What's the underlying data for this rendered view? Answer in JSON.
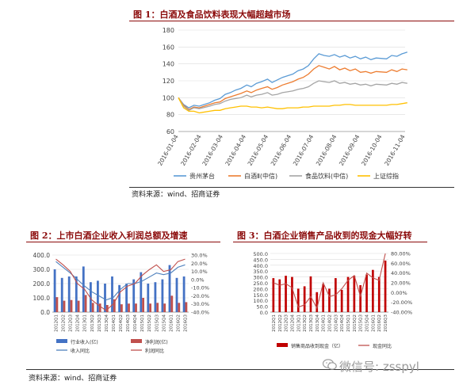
{
  "fig1": {
    "title": "图 1：白酒及食品饮料表现大幅超越市场",
    "source": "资料来源：wind、招商证券"
  },
  "fig2": {
    "title": "图 2：上市白酒企业收入利润总额及增速"
  },
  "fig3": {
    "title": "图 3：白酒企业销售产品收到的现金大幅好转"
  },
  "bottom_source": "资料来源：wind、招商证券",
  "watermark": "微信号: zsspyl",
  "chart_data": [
    {
      "type": "line",
      "x": [
        "2016-01-04",
        "2016-01-11",
        "2016-01-18",
        "2016-01-25",
        "2016-02-01",
        "2016-02-15",
        "2016-02-22",
        "2016-02-29",
        "2016-03-07",
        "2016-03-14",
        "2016-03-21",
        "2016-03-28",
        "2016-04-05",
        "2016-04-11",
        "2016-04-18",
        "2016-04-25",
        "2016-05-03",
        "2016-05-09",
        "2016-05-16",
        "2016-05-23",
        "2016-05-30",
        "2016-06-06",
        "2016-06-13",
        "2016-06-20",
        "2016-06-27",
        "2016-07-04",
        "2016-07-11",
        "2016-07-18",
        "2016-07-25",
        "2016-08-01",
        "2016-08-08",
        "2016-08-15",
        "2016-08-22",
        "2016-08-29",
        "2016-09-05",
        "2016-09-12",
        "2016-09-19",
        "2016-09-26",
        "2016-10-10",
        "2016-10-17",
        "2016-10-24",
        "2016-10-31",
        "2016-11-07"
      ],
      "xticks": [
        "2016-01-04",
        "2016-02-04",
        "2016-03-04",
        "2016-04-04",
        "2016-05-04",
        "2016-06-04",
        "2016-07-04",
        "2016-08-04",
        "2016-09-04",
        "2016-10-04",
        "2016-11-04"
      ],
      "series": [
        {
          "name": "贵州茅台",
          "color": "#5b9bd5",
          "values": [
            100,
            92,
            88,
            91,
            90,
            94,
            97,
            99,
            104,
            106,
            109,
            111,
            115,
            113,
            117,
            119,
            122,
            118,
            121,
            124,
            126,
            128,
            132,
            134,
            138,
            146,
            152,
            150,
            149,
            151,
            148,
            150,
            147,
            149,
            146,
            148,
            145,
            147,
            146,
            150,
            149,
            152,
            154
          ]
        },
        {
          "name": "白酒Ⅱ(中信)",
          "color": "#ed7d31",
          "values": [
            100,
            91,
            86,
            89,
            88,
            92,
            94,
            95,
            99,
            101,
            103,
            105,
            108,
            106,
            109,
            111,
            113,
            110,
            112,
            115,
            117,
            119,
            122,
            124,
            128,
            134,
            138,
            136,
            134,
            137,
            133,
            135,
            132,
            134,
            130,
            131,
            129,
            131,
            130,
            133,
            131,
            134,
            133
          ]
        },
        {
          "name": "食品饮料(中信)",
          "color": "#a5a5a5",
          "values": [
            100,
            90,
            85,
            88,
            87,
            90,
            92,
            93,
            96,
            98,
            99,
            100,
            103,
            101,
            103,
            104,
            106,
            103,
            104,
            106,
            107,
            108,
            110,
            111,
            113,
            117,
            120,
            119,
            118,
            120,
            117,
            118,
            116,
            117,
            115,
            116,
            114,
            116,
            115,
            117,
            116,
            118,
            117
          ]
        },
        {
          "name": "上证综指",
          "color": "#ffc000",
          "values": [
            100,
            88,
            84,
            84,
            82,
            84,
            85,
            85,
            87,
            88,
            89,
            90,
            90,
            89,
            89,
            88,
            89,
            88,
            87,
            87,
            88,
            88,
            88,
            89,
            89,
            90,
            90,
            90,
            90,
            91,
            91,
            92,
            92,
            91,
            91,
            91,
            91,
            91,
            91,
            92,
            92,
            93,
            94
          ]
        }
      ],
      "ylim": [
        60,
        180
      ],
      "yticks": [
        60,
        80,
        100,
        120,
        140,
        160,
        180
      ],
      "legend": "bottom"
    },
    {
      "type": "bar",
      "categories": [
        "2012Q1",
        "2012Q2",
        "2012Q3",
        "2012Q4",
        "2013Q1",
        "2013Q2",
        "2013Q3",
        "2013Q4",
        "2014Q1",
        "2014Q2",
        "2014Q3",
        "2014Q4",
        "2015Q1",
        "2015Q2",
        "2015Q3",
        "2015Q4",
        "2016Q1",
        "2016Q2",
        "2016Q3"
      ],
      "series": [
        {
          "name": "行业收入(亿)",
          "type": "bar",
          "axis": "left",
          "color": "#4472c4",
          "values": [
            300,
            240,
            250,
            250,
            320,
            210,
            220,
            200,
            250,
            190,
            200,
            230,
            280,
            200,
            210,
            230,
            330,
            240,
            250
          ]
        },
        {
          "name": "净利润(亿)",
          "type": "bar",
          "axis": "left",
          "color": "#c0504d",
          "values": [
            105,
            80,
            85,
            80,
            120,
            65,
            60,
            50,
            90,
            55,
            60,
            60,
            100,
            60,
            65,
            60,
            115,
            65,
            70
          ]
        },
        {
          "name": "收入同比",
          "type": "line",
          "axis": "right",
          "color": "#4f81bd",
          "values": [
            22,
            15,
            8,
            0,
            -8,
            -15,
            -20,
            -25,
            -22,
            -12,
            -5,
            -5,
            -2,
            3,
            8,
            6,
            8,
            15,
            18
          ]
        },
        {
          "name": "利润同比",
          "type": "line",
          "axis": "right",
          "color": "#c0504d",
          "values": [
            25,
            18,
            10,
            -5,
            -12,
            -25,
            -32,
            -38,
            -30,
            -15,
            -8,
            -5,
            5,
            12,
            18,
            10,
            12,
            22,
            25
          ]
        }
      ],
      "ylim_left": [
        0,
        400
      ],
      "yticks_left": [
        "0.0",
        "100.0",
        "200.0",
        "300.0",
        "400.0"
      ],
      "ylim_right": [
        -40,
        30
      ],
      "yticks_right": [
        "-40.0%",
        "-30.0%",
        "-20.0%",
        "-10.0%",
        "0.0%",
        "10.0%",
        "20.0%",
        "30.0%"
      ],
      "legend": "bottom"
    },
    {
      "type": "bar",
      "categories": [
        "2012Q1",
        "2012Q2",
        "2012Q3",
        "2012Q4",
        "2013Q1",
        "2013Q2",
        "2013Q3",
        "2013Q4",
        "2014Q1",
        "2014Q2",
        "2014Q3",
        "2014Q4",
        "2015Q1",
        "2015Q2",
        "2015Q3",
        "2015Q4",
        "2016Q1",
        "2016Q2",
        "2016Q3"
      ],
      "series": [
        {
          "name": "销售商品收到现金（亿）",
          "type": "bar",
          "axis": "left",
          "color": "#c00000",
          "values": [
            290,
            280,
            310,
            300,
            200,
            220,
            305,
            170,
            240,
            200,
            290,
            190,
            300,
            310,
            230,
            320,
            360,
            300,
            440
          ]
        },
        {
          "name": "现金同比",
          "type": "line",
          "axis": "right",
          "color": "#c0504d",
          "values": [
            20,
            15,
            18,
            10,
            -30,
            -25,
            -8,
            -32,
            20,
            -8,
            -5,
            8,
            25,
            35,
            -8,
            40,
            30,
            25,
            80
          ]
        }
      ],
      "ylim_left": [
        0,
        500
      ],
      "yticks_left": [
        "0.0",
        "50.0",
        "100.0",
        "150.0",
        "200.0",
        "250.0",
        "300.0",
        "350.0",
        "400.0",
        "450.0",
        "500.0"
      ],
      "ylim_right": [
        -40,
        80
      ],
      "yticks_right": [
        "-40.00%",
        "-20.00%",
        "0.00%",
        "20.00%",
        "40.00%",
        "60.00%",
        "80.00%"
      ],
      "legend": "bottom"
    }
  ]
}
